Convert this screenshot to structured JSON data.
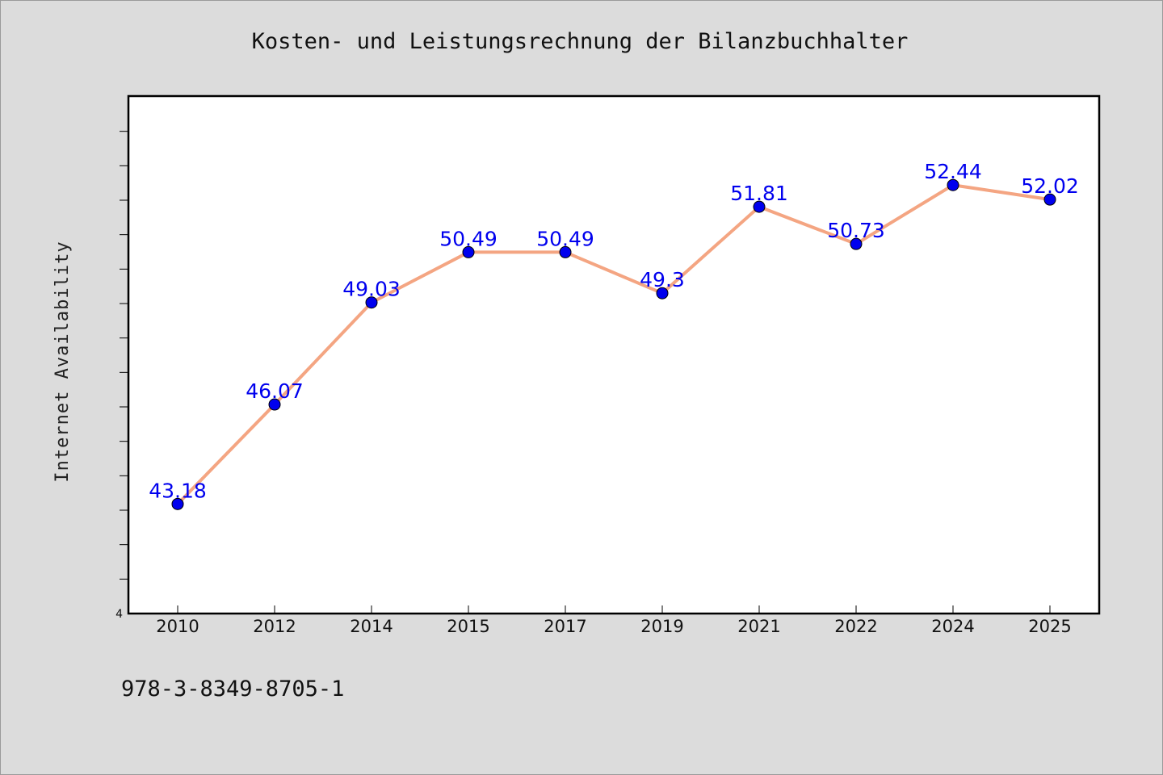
{
  "chart_data": {
    "type": "line",
    "title": "Kosten- und Leistungsrechnung der Bilanzbuchhalter",
    "xlabel": "",
    "ylabel": "Internet Availability",
    "categories": [
      "2010",
      "2012",
      "2014",
      "2015",
      "2017",
      "2019",
      "2021",
      "2022",
      "2024",
      "2025"
    ],
    "series": [
      {
        "values": [
          43.18,
          46.07,
          49.03,
          50.49,
          50.49,
          49.3,
          51.81,
          50.73,
          52.44,
          52.02
        ],
        "labels": [
          "43.18",
          "46.07",
          "49.03",
          "50.49",
          "50.49",
          "49.3",
          "51.81",
          "50.73",
          "52.44",
          "52.02"
        ]
      }
    ],
    "ylim": [
      40,
      55
    ],
    "y_tick_labels": [
      "4"
    ],
    "grid": false,
    "line_color": "#f4a582",
    "marker_color": "#0000ee",
    "label_color": "#0000ee"
  },
  "footer": {
    "isbn": "978-3-8349-8705-1"
  }
}
